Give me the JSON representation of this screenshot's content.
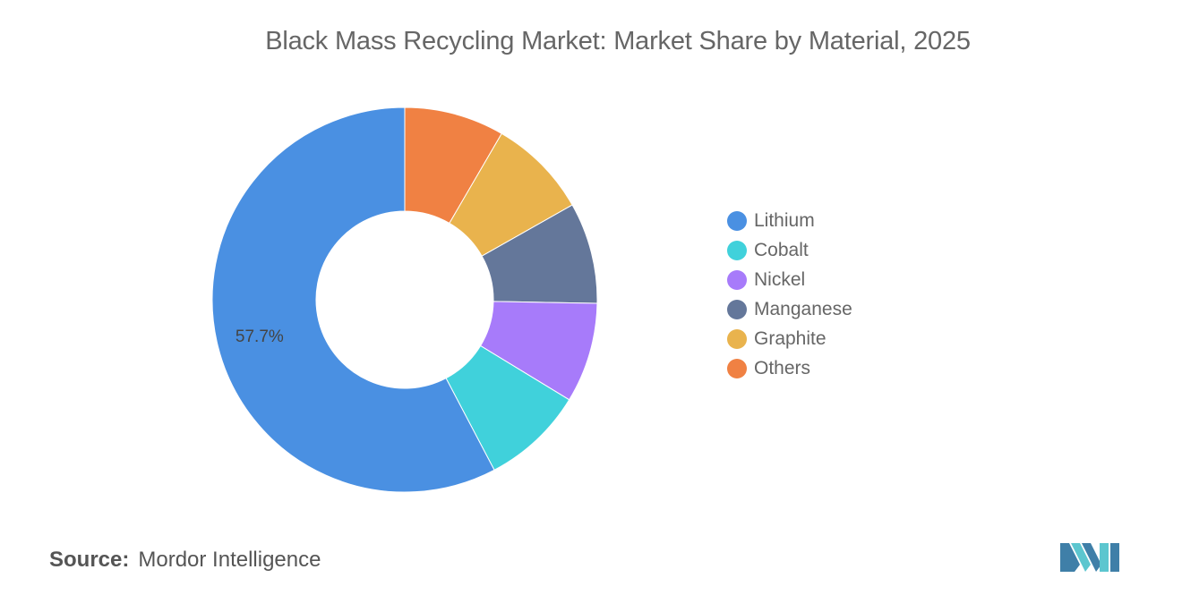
{
  "chart_data": {
    "type": "pie",
    "title": "Black Mass Recycling Market: Market Share by Material, 2025",
    "categories": [
      "Lithium",
      "Cobalt",
      "Nickel",
      "Manganese",
      "Graphite",
      "Others"
    ],
    "values": [
      57.7,
      8.6,
      8.4,
      8.5,
      8.4,
      8.4
    ],
    "colors": [
      "#4a90e2",
      "#40d1db",
      "#a77bfa",
      "#64779a",
      "#e9b34d",
      "#f08143"
    ],
    "data_labels": [
      {
        "category": "Lithium",
        "text": "57.7%"
      }
    ],
    "legend_position": "right",
    "donut": true
  },
  "source": {
    "label": "Source:",
    "text": "Mordor Intelligence"
  },
  "logo": {
    "icon": "mordor-intelligence-logo-icon",
    "colors": [
      "#3f7fa8",
      "#5cc6cf"
    ]
  }
}
